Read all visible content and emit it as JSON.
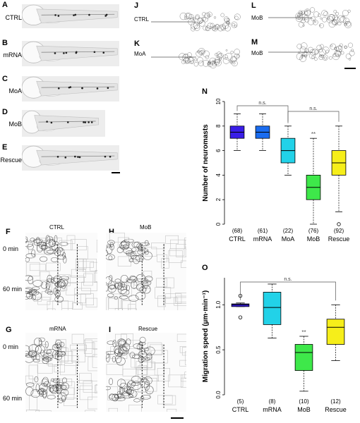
{
  "panels": {
    "A": {
      "letter": "A",
      "label": "CTRL"
    },
    "B": {
      "letter": "B",
      "label": "mRNA"
    },
    "C": {
      "letter": "C",
      "label": "MoA"
    },
    "D": {
      "letter": "D",
      "label": "MoB"
    },
    "E": {
      "letter": "E",
      "label": "Rescue"
    },
    "J": {
      "letter": "J",
      "label": "CTRL"
    },
    "K": {
      "letter": "K",
      "label": "MoA"
    },
    "L": {
      "letter": "L",
      "label": "MoB"
    },
    "M": {
      "letter": "M",
      "label": "MoB"
    },
    "F": {
      "letter": "F",
      "title": "CTRL"
    },
    "H": {
      "letter": "H",
      "title": "MoB"
    },
    "G": {
      "letter": "G",
      "title": "mRNA"
    },
    "I": {
      "letter": "I",
      "title": "Rescue"
    },
    "N": {
      "letter": "N"
    },
    "O": {
      "letter": "O"
    }
  },
  "time_labels": {
    "t0": "0 min",
    "t60": "60 min"
  },
  "chart_data": [
    {
      "type": "box",
      "panel": "N",
      "ylabel": "Number of neuromasts",
      "ylim": [
        0,
        10
      ],
      "yticks": [
        0,
        2,
        4,
        6,
        8,
        10
      ],
      "categories": [
        "CTRL",
        "mRNA",
        "MoA",
        "MoB",
        "Rescue"
      ],
      "counts": [
        "(68)",
        "(61)",
        "(22)",
        "(76)",
        "(92)"
      ],
      "colors": [
        "#3a1ee8",
        "#1a6cf0",
        "#22d2e8",
        "#3ee84a",
        "#f6ee1a"
      ],
      "boxes": [
        {
          "min": 6,
          "q1": 7,
          "median": 7.5,
          "q3": 8,
          "max": 9,
          "outliers": []
        },
        {
          "min": 6,
          "q1": 7,
          "median": 7.5,
          "q3": 8,
          "max": 9,
          "outliers": []
        },
        {
          "min": 4,
          "q1": 5,
          "median": 6,
          "q3": 7,
          "max": 8,
          "outliers": []
        },
        {
          "min": 0,
          "q1": 2,
          "median": 3,
          "q3": 4,
          "max": 7,
          "outliers": []
        },
        {
          "min": 1,
          "q1": 4,
          "median": 5,
          "q3": 6,
          "max": 8,
          "outliers": [
            0
          ]
        }
      ],
      "significance": [
        {
          "from": 0,
          "to": 2,
          "label": "n.s."
        },
        {
          "from": 2,
          "to": 4,
          "label": "n.s."
        }
      ],
      "stars": [
        {
          "index": 3,
          "label": "**"
        }
      ]
    },
    {
      "type": "box",
      "panel": "O",
      "ylabel": "Migration speed (µm·min⁻¹)",
      "ylim": [
        0,
        1.3
      ],
      "yticks": [
        0.0,
        0.5,
        1.0
      ],
      "ytick_labels": [
        "0.0",
        "0.5",
        "1.0"
      ],
      "categories": [
        "CTRL",
        "mRNA",
        "MoB",
        "Rescue"
      ],
      "counts": [
        "(5)",
        "(8)",
        "(10)",
        "(12)"
      ],
      "colors": [
        "#3a1ee8",
        "#22d2e8",
        "#3ee84a",
        "#f6ee1a"
      ],
      "boxes": [
        {
          "min": 0.98,
          "q1": 0.98,
          "median": 1.0,
          "q3": 1.01,
          "max": 1.02,
          "outliers": [
            1.1,
            0.86
          ]
        },
        {
          "min": 0.63,
          "q1": 0.78,
          "median": 0.97,
          "q3": 1.14,
          "max": 1.23,
          "outliers": []
        },
        {
          "min": 0.04,
          "q1": 0.27,
          "median": 0.47,
          "q3": 0.56,
          "max": 0.65,
          "outliers": []
        },
        {
          "min": 0.38,
          "q1": 0.56,
          "median": 0.75,
          "q3": 0.84,
          "max": 1.0,
          "outliers": []
        }
      ],
      "significance": [
        {
          "from": 0,
          "to": 3,
          "label": "n.s."
        }
      ],
      "stars": [
        {
          "index": 2,
          "label": "**"
        }
      ]
    }
  ]
}
